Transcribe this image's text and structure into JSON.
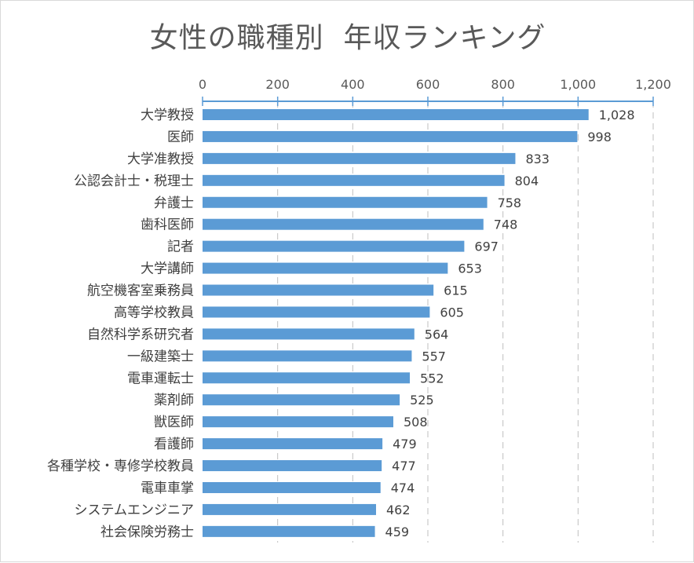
{
  "chart_data": {
    "type": "bar",
    "orientation": "horizontal",
    "title": "女性の職種別  年収ランキング",
    "xlabel": "",
    "ylabel": "",
    "xlim": [
      0,
      1200
    ],
    "x_ticks": [
      "0",
      "200",
      "400",
      "600",
      "800",
      "1,000",
      "1,200"
    ],
    "x_tick_values": [
      0,
      200,
      400,
      600,
      800,
      1000,
      1200
    ],
    "x_axis_position": "top",
    "grid": "vertical dashed",
    "bar_color": "#5b9bd5",
    "axis_color": "#5b9bd5",
    "categories": [
      "大学教授",
      "医師",
      "大学准教授",
      "公認会計士・税理士",
      "弁護士",
      "歯科医師",
      "記者",
      "大学講師",
      "航空機客室乗務員",
      "高等学校教員",
      "自然科学系研究者",
      "一級建築士",
      "電車運転士",
      "薬剤師",
      "獣医師",
      "看護師",
      "各種学校・専修学校教員",
      "電車車掌",
      "システムエンジニア",
      "社会保険労務士"
    ],
    "values": [
      1028,
      998,
      833,
      804,
      758,
      748,
      697,
      653,
      615,
      605,
      564,
      557,
      552,
      525,
      508,
      479,
      477,
      474,
      462,
      459
    ],
    "value_labels": [
      "1,028",
      "998",
      "833",
      "804",
      "758",
      "748",
      "697",
      "653",
      "615",
      "605",
      "564",
      "557",
      "552",
      "525",
      "508",
      "479",
      "477",
      "474",
      "462",
      "459"
    ]
  }
}
